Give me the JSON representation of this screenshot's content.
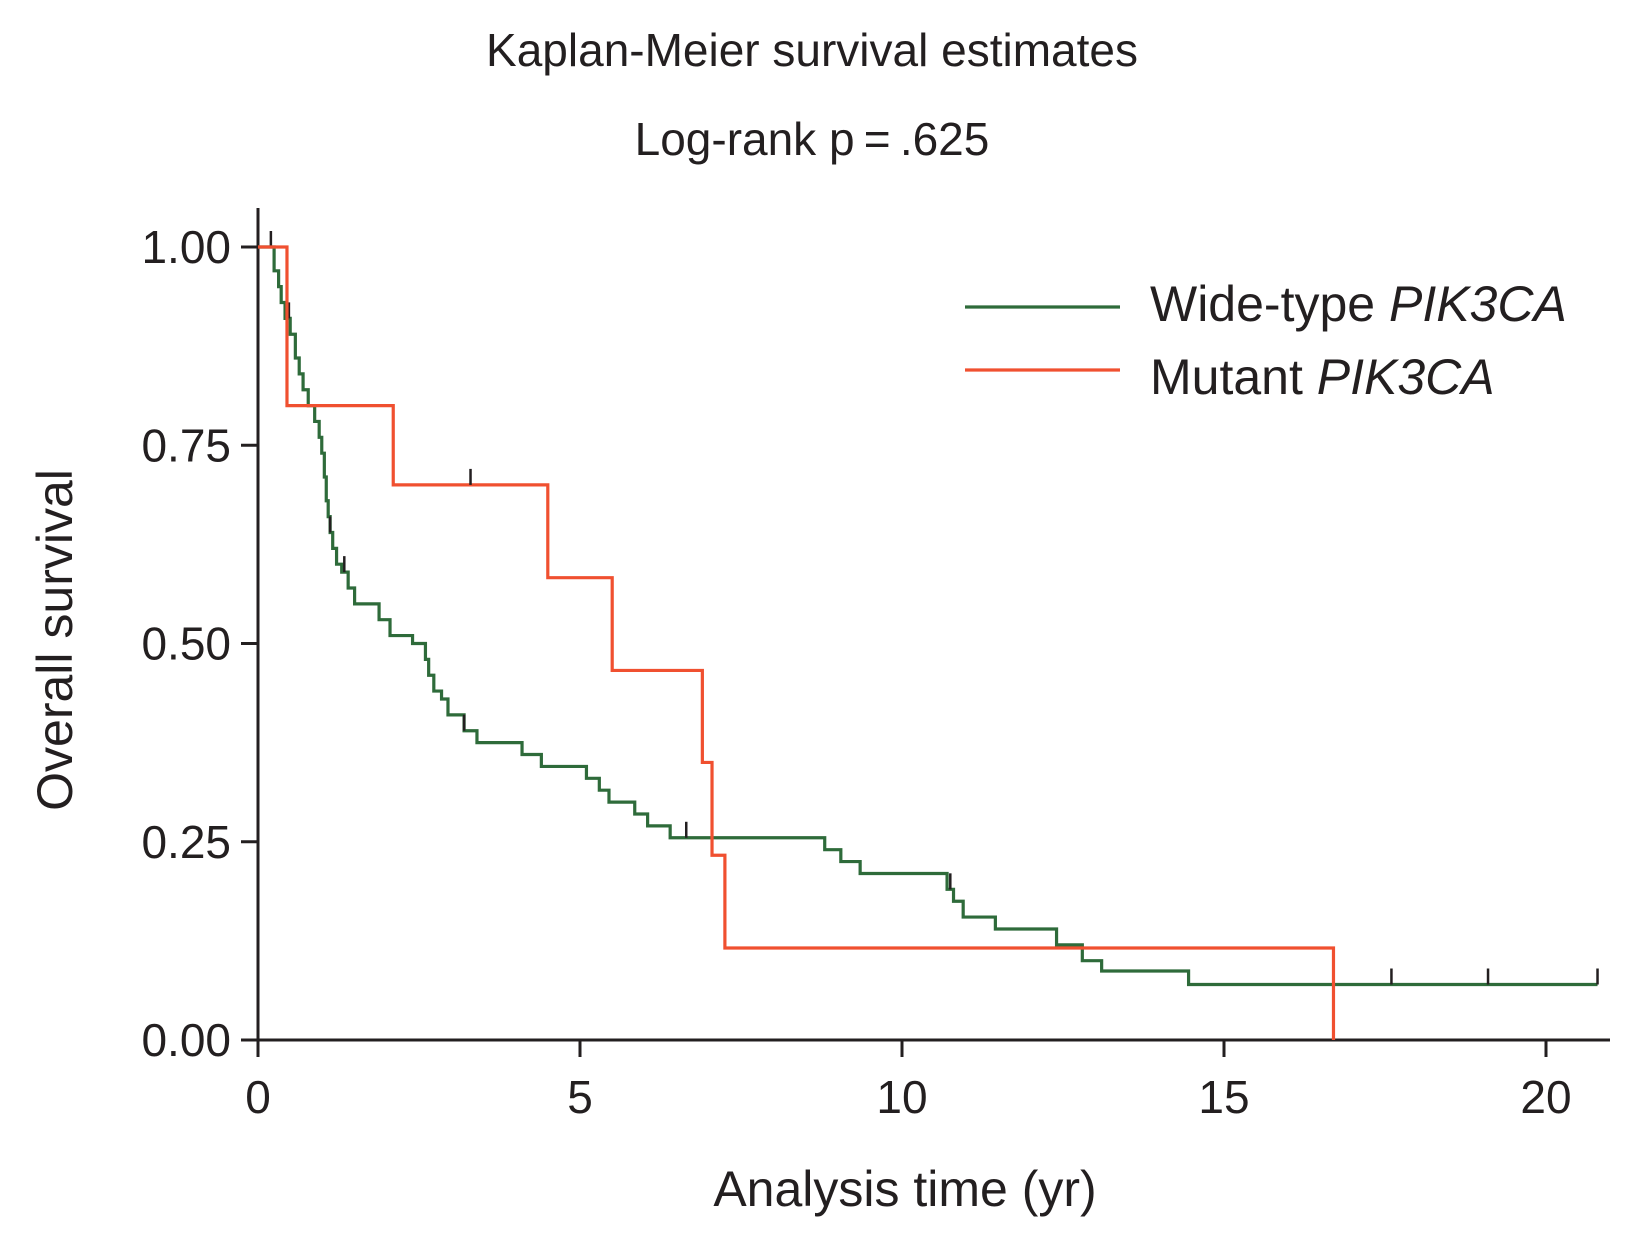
{
  "chart_data": {
    "type": "line",
    "title": "Kaplan-Meier survival estimates",
    "subtitle": "Log-rank p = .625",
    "xlabel": "Analysis time (yr)",
    "ylabel": "Overall survival",
    "xlim": [
      0,
      21
    ],
    "ylim": [
      0,
      1.05
    ],
    "x_ticks": [
      0,
      5,
      10,
      15,
      20
    ],
    "x_tick_labels": [
      "0",
      "5",
      "10",
      "15",
      "20"
    ],
    "y_ticks": [
      0,
      0.25,
      0.5,
      0.75,
      1.0
    ],
    "y_tick_labels": [
      "0.00",
      "0.25",
      "0.50",
      "0.75",
      "1.00"
    ],
    "grid": false,
    "legend_position": "top-right",
    "series": [
      {
        "name_prefix": "Wide-type ",
        "name_gene": "PIK3CA",
        "color": "#2e6b3a",
        "step_points": [
          [
            0,
            1.0
          ],
          [
            0.25,
            0.97
          ],
          [
            0.32,
            0.95
          ],
          [
            0.36,
            0.93
          ],
          [
            0.42,
            0.91
          ],
          [
            0.5,
            0.89
          ],
          [
            0.58,
            0.86
          ],
          [
            0.64,
            0.84
          ],
          [
            0.7,
            0.82
          ],
          [
            0.78,
            0.8
          ],
          [
            0.88,
            0.78
          ],
          [
            0.95,
            0.76
          ],
          [
            0.99,
            0.74
          ],
          [
            1.03,
            0.71
          ],
          [
            1.06,
            0.68
          ],
          [
            1.09,
            0.66
          ],
          [
            1.12,
            0.64
          ],
          [
            1.16,
            0.62
          ],
          [
            1.22,
            0.6
          ],
          [
            1.3,
            0.59
          ],
          [
            1.4,
            0.57
          ],
          [
            1.5,
            0.55
          ],
          [
            1.88,
            0.53
          ],
          [
            2.05,
            0.51
          ],
          [
            2.4,
            0.5
          ],
          [
            2.6,
            0.48
          ],
          [
            2.65,
            0.46
          ],
          [
            2.73,
            0.44
          ],
          [
            2.85,
            0.43
          ],
          [
            2.95,
            0.41
          ],
          [
            3.2,
            0.39
          ],
          [
            3.4,
            0.375
          ],
          [
            4.1,
            0.36
          ],
          [
            4.4,
            0.345
          ],
          [
            5.1,
            0.33
          ],
          [
            5.3,
            0.315
          ],
          [
            5.45,
            0.3
          ],
          [
            5.85,
            0.285
          ],
          [
            6.05,
            0.27
          ],
          [
            6.4,
            0.255
          ],
          [
            8.8,
            0.24
          ],
          [
            9.05,
            0.225
          ],
          [
            9.35,
            0.21
          ],
          [
            10.7,
            0.19
          ],
          [
            10.8,
            0.175
          ],
          [
            10.95,
            0.155
          ],
          [
            11.45,
            0.14
          ],
          [
            12.4,
            0.12
          ],
          [
            12.8,
            0.1
          ],
          [
            13.1,
            0.087
          ],
          [
            14.45,
            0.07
          ],
          [
            20.8,
            0.07
          ]
        ],
        "censor_times": [
          0.2,
          0.48,
          1.12,
          1.34,
          3.2,
          6.65,
          10.75,
          17.6,
          19.1,
          20.8
        ]
      },
      {
        "name_prefix": "Mutant ",
        "name_gene": "PIK3CA",
        "color": "#f05030",
        "step_points": [
          [
            0,
            1.0
          ],
          [
            0.45,
            0.8
          ],
          [
            2.1,
            0.7
          ],
          [
            4.5,
            0.583
          ],
          [
            5.5,
            0.466
          ],
          [
            6.9,
            0.35
          ],
          [
            7.05,
            0.233
          ],
          [
            7.25,
            0.116
          ],
          [
            16.7,
            0.0
          ]
        ],
        "censor_times": [
          3.3
        ]
      }
    ]
  }
}
